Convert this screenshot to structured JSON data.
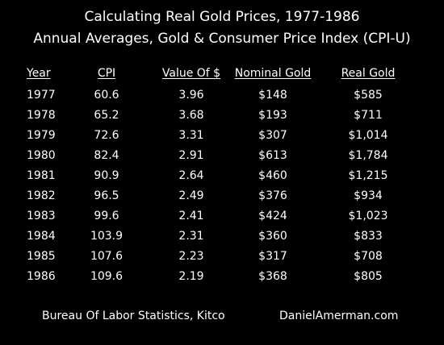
{
  "title": "Calculating Real Gold Prices, 1977-1986",
  "subtitle": "Annual Averages, Gold & Consumer Price Index (CPI-U)",
  "chart_data": {
    "type": "table",
    "title": "Calculating Real Gold Prices, 1977-1986",
    "subtitle": "Annual Averages, Gold & Consumer Price Index (CPI-U)",
    "columns": [
      "Year",
      "CPI",
      "Value Of $",
      "Nominal Gold",
      "Real Gold"
    ],
    "rows": [
      [
        "1977",
        "60.6",
        "3.96",
        "$148",
        "$585"
      ],
      [
        "1978",
        "65.2",
        "3.68",
        "$193",
        "$711"
      ],
      [
        "1979",
        "72.6",
        "3.31",
        "$307",
        "$1,014"
      ],
      [
        "1980",
        "82.4",
        "2.91",
        "$613",
        "$1,784"
      ],
      [
        "1981",
        "90.9",
        "2.64",
        "$460",
        "$1,215"
      ],
      [
        "1982",
        "96.5",
        "2.49",
        "$376",
        "$934"
      ],
      [
        "1983",
        "99.6",
        "2.41",
        "$424",
        "$1,023"
      ],
      [
        "1984",
        "103.9",
        "2.31",
        "$360",
        "$833"
      ],
      [
        "1985",
        "107.6",
        "2.23",
        "$317",
        "$708"
      ],
      [
        "1986",
        "109.6",
        "2.19",
        "$368",
        "$805"
      ]
    ]
  },
  "footer": {
    "source": "Bureau Of Labor Statistics, Kitco",
    "website": "DanielAmerman.com"
  },
  "colors": {
    "background": "#000000",
    "text": "#ffffff"
  }
}
